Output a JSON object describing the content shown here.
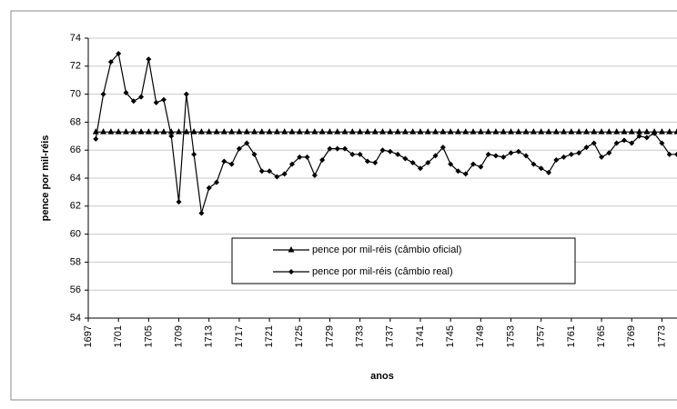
{
  "chart_data": {
    "type": "line",
    "x_label": "anos",
    "y_label": "pence por mil-réis",
    "x": [
      1698,
      1699,
      1700,
      1701,
      1702,
      1703,
      1704,
      1705,
      1706,
      1707,
      1708,
      1709,
      1710,
      1711,
      1712,
      1713,
      1714,
      1715,
      1716,
      1717,
      1718,
      1719,
      1720,
      1721,
      1722,
      1723,
      1724,
      1725,
      1726,
      1727,
      1728,
      1729,
      1730,
      1731,
      1732,
      1733,
      1734,
      1735,
      1736,
      1737,
      1738,
      1739,
      1740,
      1741,
      1742,
      1743,
      1744,
      1745,
      1746,
      1747,
      1748,
      1749,
      1750,
      1751,
      1752,
      1753,
      1754,
      1755,
      1756,
      1757,
      1758,
      1759,
      1760,
      1761,
      1762,
      1763,
      1764,
      1765,
      1766,
      1767,
      1768,
      1769,
      1770,
      1771,
      1772,
      1773,
      1774,
      1775
    ],
    "series": [
      {
        "name": "pence por mil-réis (câmbio oficial)",
        "color": "#000000",
        "marker": "triangle",
        "values": [
          67.3,
          67.3,
          67.3,
          67.3,
          67.3,
          67.3,
          67.3,
          67.3,
          67.3,
          67.3,
          67.3,
          67.3,
          67.3,
          67.3,
          67.3,
          67.3,
          67.3,
          67.3,
          67.3,
          67.3,
          67.3,
          67.3,
          67.3,
          67.3,
          67.3,
          67.3,
          67.3,
          67.3,
          67.3,
          67.3,
          67.3,
          67.3,
          67.3,
          67.3,
          67.3,
          67.3,
          67.3,
          67.3,
          67.3,
          67.3,
          67.3,
          67.3,
          67.3,
          67.3,
          67.3,
          67.3,
          67.3,
          67.3,
          67.3,
          67.3,
          67.3,
          67.3,
          67.3,
          67.3,
          67.3,
          67.3,
          67.3,
          67.3,
          67.3,
          67.3,
          67.3,
          67.3,
          67.3,
          67.3,
          67.3,
          67.3,
          67.3,
          67.3,
          67.3,
          67.3,
          67.3,
          67.3,
          67.3,
          67.3,
          67.3,
          67.3,
          67.3,
          67.3
        ]
      },
      {
        "name": "pence por mil-réis (câmbio real)",
        "color": "#000000",
        "marker": "diamond",
        "values": [
          66.8,
          70,
          72.3,
          72.9,
          70.1,
          69.5,
          69.8,
          72.5,
          69.4,
          69.6,
          67,
          62.3,
          70,
          65.7,
          61.5,
          63.3,
          63.7,
          65.2,
          65,
          66.1,
          66.5,
          65.7,
          64.5,
          64.5,
          64.1,
          64.3,
          65,
          65.5,
          65.5,
          64.2,
          65.3,
          66.1,
          66.1,
          66.1,
          65.7,
          65.7,
          65.2,
          65.1,
          66,
          65.9,
          65.7,
          65.4,
          65.1,
          64.7,
          65.1,
          65.6,
          66.2,
          65,
          64.5,
          64.3,
          65,
          64.8,
          65.7,
          65.6,
          65.5,
          65.8,
          65.9,
          65.6,
          65,
          64.7,
          64.4,
          65.3,
          65.5,
          65.7,
          65.8,
          66.2,
          66.5,
          65.5,
          65.8,
          66.5,
          66.7,
          66.5,
          67,
          66.9,
          67.2,
          66.5,
          65.7,
          65.7
        ]
      }
    ],
    "xlim": [
      1697,
      1775
    ],
    "xticks": [
      1697,
      1701,
      1705,
      1709,
      1713,
      1717,
      1721,
      1725,
      1729,
      1733,
      1737,
      1741,
      1745,
      1749,
      1753,
      1757,
      1761,
      1765,
      1769,
      1773
    ],
    "ylim": [
      54,
      74
    ],
    "yticks": [
      54,
      56,
      58,
      60,
      62,
      64,
      66,
      68,
      70,
      72,
      74
    ],
    "grid": true,
    "legend_position": "center"
  }
}
